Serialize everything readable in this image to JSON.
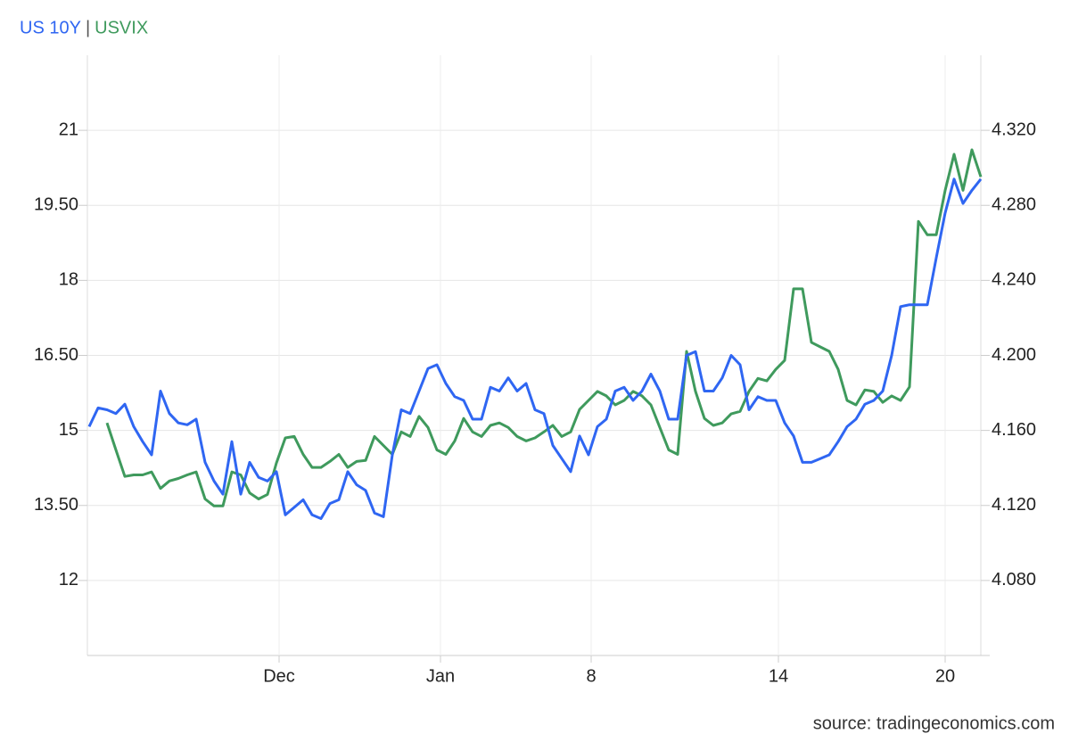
{
  "chart_data": {
    "type": "line",
    "legend_separator": "|",
    "source": "source: tradingeconomics.com",
    "xlim": [
      0,
      100
    ],
    "xticks": [
      {
        "value": 21.3,
        "label": "Dec"
      },
      {
        "value": 39.4,
        "label": "Jan"
      },
      {
        "value": 56.3,
        "label": "8"
      },
      {
        "value": 77.3,
        "label": "14"
      },
      {
        "value": 96,
        "label": "20"
      }
    ],
    "ylim": [
      10.5,
      22.5
    ],
    "yticks": [
      12,
      {
        "value": 13.5,
        "label": "13.50"
      },
      15,
      {
        "value": 16.5,
        "label": "16.50"
      },
      18,
      {
        "value": 19.5,
        "label": "19.50"
      },
      21
    ],
    "y2lim": [
      4.04,
      4.36
    ],
    "y2ticks": [
      {
        "value": 4.08,
        "label": "4.080"
      },
      {
        "value": 4.12,
        "label": "4.120"
      },
      {
        "value": 4.16,
        "label": "4.160"
      },
      {
        "value": 4.2,
        "label": "4.200"
      },
      {
        "value": 4.24,
        "label": "4.240"
      },
      {
        "value": 4.28,
        "label": "4.280"
      },
      {
        "value": 4.32,
        "label": "4.320"
      }
    ],
    "grid": true,
    "series": [
      {
        "name": "US 10Y",
        "color": "#2f66f2",
        "axis": "y2",
        "values": [
          4.162,
          4.172,
          4.171,
          4.169,
          4.174,
          4.162,
          4.154,
          4.147,
          4.181,
          4.169,
          4.164,
          4.163,
          4.166,
          4.143,
          4.133,
          4.126,
          4.154,
          4.126,
          4.143,
          4.135,
          4.133,
          4.138,
          4.115,
          4.119,
          4.123,
          4.115,
          4.113,
          4.121,
          4.123,
          4.138,
          4.131,
          4.128,
          4.116,
          4.114,
          4.147,
          4.171,
          4.169,
          4.181,
          4.193,
          4.195,
          4.185,
          4.178,
          4.176,
          4.166,
          4.166,
          4.183,
          4.181,
          4.188,
          4.181,
          4.185,
          4.171,
          4.169,
          4.152,
          4.145,
          4.138,
          4.157,
          4.147,
          4.162,
          4.166,
          4.181,
          4.183,
          4.176,
          4.181,
          4.19,
          4.181,
          4.166,
          4.166,
          4.2,
          4.202,
          4.181,
          4.181,
          4.188,
          4.2,
          4.195,
          4.171,
          4.178,
          4.176,
          4.176,
          4.164,
          4.157,
          4.143,
          4.143,
          4.145,
          4.147,
          4.154,
          4.162,
          4.166,
          4.174,
          4.176,
          4.181,
          4.2,
          4.226,
          4.227,
          4.227,
          4.227,
          4.252,
          4.276,
          4.294,
          4.281,
          4.288,
          4.294
        ]
      },
      {
        "name": "USVIX",
        "color": "#3f9a5d",
        "values": [
          null,
          null,
          15.15,
          14.61,
          14.08,
          14.11,
          14.11,
          14.17,
          13.84,
          13.99,
          14.04,
          14.11,
          14.17,
          13.63,
          13.49,
          13.49,
          14.17,
          14.11,
          13.75,
          13.63,
          13.72,
          14.35,
          14.85,
          14.88,
          14.52,
          14.26,
          14.26,
          14.38,
          14.52,
          14.26,
          14.38,
          14.4,
          14.88,
          14.7,
          14.52,
          14.97,
          14.88,
          15.28,
          15.06,
          14.61,
          14.52,
          14.79,
          15.24,
          14.97,
          14.88,
          15.1,
          15.15,
          15.06,
          14.88,
          14.79,
          14.85,
          14.97,
          15.1,
          14.88,
          14.97,
          15.42,
          15.6,
          15.78,
          15.69,
          15.51,
          15.6,
          15.78,
          15.69,
          15.51,
          15.06,
          14.61,
          14.52,
          16.58,
          15.78,
          15.24,
          15.1,
          15.15,
          15.33,
          15.38,
          15.78,
          16.04,
          15.99,
          16.22,
          16.4,
          17.83,
          17.83,
          16.76,
          16.67,
          16.58,
          16.22,
          15.6,
          15.51,
          15.81,
          15.78,
          15.56,
          15.69,
          15.6,
          15.87,
          19.18,
          18.91,
          18.91,
          19.8,
          20.52,
          19.8,
          20.61,
          20.07
        ]
      }
    ]
  }
}
